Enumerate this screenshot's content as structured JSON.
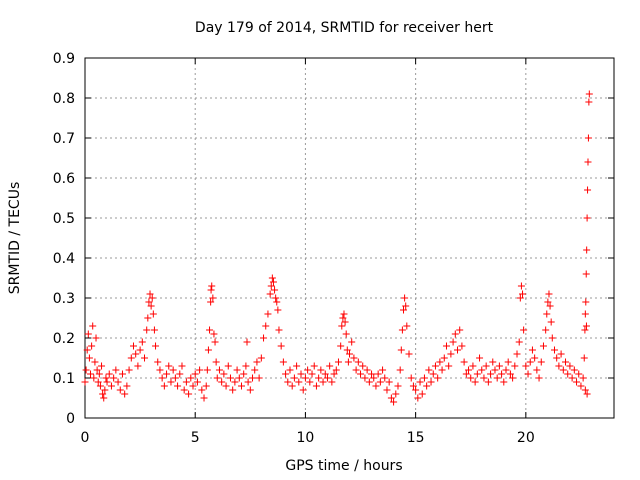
{
  "chart_data": {
    "type": "scatter",
    "title": "Day 179 of 2014, SRMTID for receiver hert",
    "xlabel": "GPS time / hours",
    "ylabel": "SRMTID / TECUs",
    "xlim": [
      0,
      24
    ],
    "ylim": [
      0,
      0.9
    ],
    "xticks": [
      0,
      5,
      10,
      15,
      20
    ],
    "yticks": [
      0,
      0.1,
      0.2,
      0.3,
      0.4,
      0.5,
      0.6,
      0.7,
      0.8,
      0.9
    ],
    "grid": true,
    "marker": "+",
    "color": "#ff0000",
    "series": [
      {
        "name": "SRMTID",
        "points": [
          [
            0.0,
            0.09
          ],
          [
            0.05,
            0.12
          ],
          [
            0.1,
            0.17
          ],
          [
            0.15,
            0.21
          ],
          [
            0.2,
            0.15
          ],
          [
            0.25,
            0.11
          ],
          [
            0.3,
            0.18
          ],
          [
            0.35,
            0.23
          ],
          [
            0.4,
            0.1
          ],
          [
            0.45,
            0.14
          ],
          [
            0.5,
            0.2
          ],
          [
            0.55,
            0.12
          ],
          [
            0.6,
            0.09
          ],
          [
            0.65,
            0.11
          ],
          [
            0.7,
            0.08
          ],
          [
            0.75,
            0.13
          ],
          [
            0.8,
            0.06
          ],
          [
            0.85,
            0.05
          ],
          [
            0.9,
            0.07
          ],
          [
            0.95,
            0.1
          ],
          [
            1.0,
            0.09
          ],
          [
            1.1,
            0.11
          ],
          [
            1.2,
            0.08
          ],
          [
            1.3,
            0.1
          ],
          [
            1.4,
            0.12
          ],
          [
            1.5,
            0.09
          ],
          [
            1.6,
            0.07
          ],
          [
            1.7,
            0.11
          ],
          [
            1.8,
            0.06
          ],
          [
            1.9,
            0.08
          ],
          [
            2.0,
            0.12
          ],
          [
            2.1,
            0.15
          ],
          [
            2.2,
            0.18
          ],
          [
            2.3,
            0.16
          ],
          [
            2.4,
            0.13
          ],
          [
            2.5,
            0.17
          ],
          [
            2.6,
            0.19
          ],
          [
            2.7,
            0.15
          ],
          [
            2.8,
            0.22
          ],
          [
            2.85,
            0.25
          ],
          [
            2.9,
            0.29
          ],
          [
            2.95,
            0.31
          ],
          [
            3.0,
            0.28
          ],
          [
            3.05,
            0.3
          ],
          [
            3.1,
            0.26
          ],
          [
            3.15,
            0.22
          ],
          [
            3.2,
            0.18
          ],
          [
            3.3,
            0.14
          ],
          [
            3.4,
            0.12
          ],
          [
            3.5,
            0.1
          ],
          [
            3.6,
            0.08
          ],
          [
            3.7,
            0.11
          ],
          [
            3.8,
            0.13
          ],
          [
            3.9,
            0.09
          ],
          [
            4.0,
            0.12
          ],
          [
            4.1,
            0.1
          ],
          [
            4.2,
            0.08
          ],
          [
            4.3,
            0.11
          ],
          [
            4.4,
            0.13
          ],
          [
            4.5,
            0.07
          ],
          [
            4.6,
            0.09
          ],
          [
            4.7,
            0.06
          ],
          [
            4.8,
            0.1
          ],
          [
            4.9,
            0.08
          ],
          [
            5.0,
            0.11
          ],
          [
            5.1,
            0.09
          ],
          [
            5.2,
            0.12
          ],
          [
            5.3,
            0.07
          ],
          [
            5.4,
            0.05
          ],
          [
            5.5,
            0.08
          ],
          [
            5.55,
            0.12
          ],
          [
            5.6,
            0.17
          ],
          [
            5.65,
            0.22
          ],
          [
            5.7,
            0.29
          ],
          [
            5.72,
            0.32
          ],
          [
            5.75,
            0.33
          ],
          [
            5.8,
            0.3
          ],
          [
            5.85,
            0.21
          ],
          [
            5.9,
            0.19
          ],
          [
            5.95,
            0.14
          ],
          [
            6.0,
            0.1
          ],
          [
            6.1,
            0.12
          ],
          [
            6.2,
            0.09
          ],
          [
            6.3,
            0.11
          ],
          [
            6.4,
            0.08
          ],
          [
            6.5,
            0.13
          ],
          [
            6.6,
            0.1
          ],
          [
            6.7,
            0.07
          ],
          [
            6.8,
            0.09
          ],
          [
            6.9,
            0.12
          ],
          [
            7.0,
            0.1
          ],
          [
            7.1,
            0.08
          ],
          [
            7.2,
            0.11
          ],
          [
            7.3,
            0.13
          ],
          [
            7.35,
            0.19
          ],
          [
            7.4,
            0.09
          ],
          [
            7.5,
            0.07
          ],
          [
            7.6,
            0.1
          ],
          [
            7.7,
            0.12
          ],
          [
            7.8,
            0.14
          ],
          [
            7.9,
            0.1
          ],
          [
            8.0,
            0.15
          ],
          [
            8.1,
            0.2
          ],
          [
            8.2,
            0.23
          ],
          [
            8.3,
            0.26
          ],
          [
            8.4,
            0.31
          ],
          [
            8.45,
            0.33
          ],
          [
            8.5,
            0.35
          ],
          [
            8.55,
            0.34
          ],
          [
            8.6,
            0.32
          ],
          [
            8.65,
            0.3
          ],
          [
            8.7,
            0.29
          ],
          [
            8.75,
            0.27
          ],
          [
            8.8,
            0.22
          ],
          [
            8.9,
            0.18
          ],
          [
            9.0,
            0.14
          ],
          [
            9.1,
            0.11
          ],
          [
            9.2,
            0.09
          ],
          [
            9.3,
            0.12
          ],
          [
            9.4,
            0.08
          ],
          [
            9.5,
            0.1
          ],
          [
            9.6,
            0.13
          ],
          [
            9.7,
            0.09
          ],
          [
            9.8,
            0.11
          ],
          [
            9.9,
            0.07
          ],
          [
            10.0,
            0.1
          ],
          [
            10.1,
            0.12
          ],
          [
            10.2,
            0.09
          ],
          [
            10.3,
            0.11
          ],
          [
            10.4,
            0.13
          ],
          [
            10.5,
            0.08
          ],
          [
            10.6,
            0.1
          ],
          [
            10.7,
            0.12
          ],
          [
            10.8,
            0.09
          ],
          [
            10.9,
            0.11
          ],
          [
            11.0,
            0.1
          ],
          [
            11.1,
            0.13
          ],
          [
            11.2,
            0.09
          ],
          [
            11.3,
            0.11
          ],
          [
            11.4,
            0.12
          ],
          [
            11.5,
            0.14
          ],
          [
            11.6,
            0.18
          ],
          [
            11.65,
            0.23
          ],
          [
            11.7,
            0.25
          ],
          [
            11.75,
            0.26
          ],
          [
            11.8,
            0.24
          ],
          [
            11.85,
            0.21
          ],
          [
            11.9,
            0.17
          ],
          [
            11.95,
            0.14
          ],
          [
            12.0,
            0.16
          ],
          [
            12.1,
            0.19
          ],
          [
            12.2,
            0.15
          ],
          [
            12.3,
            0.12
          ],
          [
            12.4,
            0.14
          ],
          [
            12.5,
            0.11
          ],
          [
            12.6,
            0.13
          ],
          [
            12.7,
            0.1
          ],
          [
            12.8,
            0.12
          ],
          [
            12.9,
            0.09
          ],
          [
            13.0,
            0.11
          ],
          [
            13.1,
            0.1
          ],
          [
            13.2,
            0.08
          ],
          [
            13.3,
            0.11
          ],
          [
            13.4,
            0.09
          ],
          [
            13.5,
            0.12
          ],
          [
            13.6,
            0.1
          ],
          [
            13.7,
            0.07
          ],
          [
            13.8,
            0.09
          ],
          [
            13.9,
            0.05
          ],
          [
            14.0,
            0.04
          ],
          [
            14.1,
            0.06
          ],
          [
            14.2,
            0.08
          ],
          [
            14.3,
            0.12
          ],
          [
            14.35,
            0.17
          ],
          [
            14.4,
            0.22
          ],
          [
            14.45,
            0.27
          ],
          [
            14.5,
            0.3
          ],
          [
            14.55,
            0.28
          ],
          [
            14.6,
            0.23
          ],
          [
            14.7,
            0.16
          ],
          [
            14.8,
            0.1
          ],
          [
            14.9,
            0.08
          ],
          [
            15.0,
            0.07
          ],
          [
            15.1,
            0.05
          ],
          [
            15.2,
            0.09
          ],
          [
            15.3,
            0.06
          ],
          [
            15.4,
            0.1
          ],
          [
            15.5,
            0.08
          ],
          [
            15.6,
            0.12
          ],
          [
            15.7,
            0.09
          ],
          [
            15.8,
            0.11
          ],
          [
            15.9,
            0.13
          ],
          [
            16.0,
            0.1
          ],
          [
            16.1,
            0.14
          ],
          [
            16.2,
            0.12
          ],
          [
            16.3,
            0.15
          ],
          [
            16.4,
            0.18
          ],
          [
            16.5,
            0.13
          ],
          [
            16.6,
            0.16
          ],
          [
            16.7,
            0.19
          ],
          [
            16.8,
            0.21
          ],
          [
            16.9,
            0.17
          ],
          [
            17.0,
            0.22
          ],
          [
            17.1,
            0.18
          ],
          [
            17.2,
            0.14
          ],
          [
            17.3,
            0.11
          ],
          [
            17.4,
            0.12
          ],
          [
            17.5,
            0.1
          ],
          [
            17.6,
            0.13
          ],
          [
            17.7,
            0.09
          ],
          [
            17.8,
            0.11
          ],
          [
            17.9,
            0.15
          ],
          [
            18.0,
            0.12
          ],
          [
            18.1,
            0.1
          ],
          [
            18.2,
            0.13
          ],
          [
            18.3,
            0.09
          ],
          [
            18.4,
            0.11
          ],
          [
            18.5,
            0.14
          ],
          [
            18.6,
            0.12
          ],
          [
            18.7,
            0.1
          ],
          [
            18.8,
            0.13
          ],
          [
            18.9,
            0.11
          ],
          [
            19.0,
            0.09
          ],
          [
            19.1,
            0.12
          ],
          [
            19.2,
            0.14
          ],
          [
            19.3,
            0.11
          ],
          [
            19.4,
            0.1
          ],
          [
            19.5,
            0.13
          ],
          [
            19.6,
            0.16
          ],
          [
            19.7,
            0.19
          ],
          [
            19.75,
            0.3
          ],
          [
            19.8,
            0.33
          ],
          [
            19.85,
            0.31
          ],
          [
            19.9,
            0.22
          ],
          [
            20.0,
            0.13
          ],
          [
            20.1,
            0.11
          ],
          [
            20.2,
            0.14
          ],
          [
            20.3,
            0.17
          ],
          [
            20.4,
            0.15
          ],
          [
            20.5,
            0.12
          ],
          [
            20.6,
            0.1
          ],
          [
            20.7,
            0.14
          ],
          [
            20.8,
            0.18
          ],
          [
            20.9,
            0.22
          ],
          [
            20.95,
            0.26
          ],
          [
            21.0,
            0.29
          ],
          [
            21.05,
            0.31
          ],
          [
            21.1,
            0.28
          ],
          [
            21.15,
            0.24
          ],
          [
            21.2,
            0.2
          ],
          [
            21.3,
            0.17
          ],
          [
            21.4,
            0.15
          ],
          [
            21.5,
            0.13
          ],
          [
            21.6,
            0.16
          ],
          [
            21.7,
            0.12
          ],
          [
            21.8,
            0.14
          ],
          [
            21.9,
            0.11
          ],
          [
            22.0,
            0.13
          ],
          [
            22.1,
            0.1
          ],
          [
            22.2,
            0.12
          ],
          [
            22.3,
            0.09
          ],
          [
            22.4,
            0.11
          ],
          [
            22.5,
            0.08
          ],
          [
            22.6,
            0.1
          ],
          [
            22.65,
            0.15
          ],
          [
            22.68,
            0.22
          ],
          [
            22.7,
            0.26
          ],
          [
            22.72,
            0.29
          ],
          [
            22.74,
            0.36
          ],
          [
            22.76,
            0.42
          ],
          [
            22.78,
            0.5
          ],
          [
            22.8,
            0.57
          ],
          [
            22.82,
            0.64
          ],
          [
            22.84,
            0.7
          ],
          [
            22.86,
            0.79
          ],
          [
            22.88,
            0.81
          ],
          [
            22.75,
            0.23
          ],
          [
            22.7,
            0.07
          ],
          [
            22.78,
            0.06
          ]
        ]
      }
    ]
  }
}
